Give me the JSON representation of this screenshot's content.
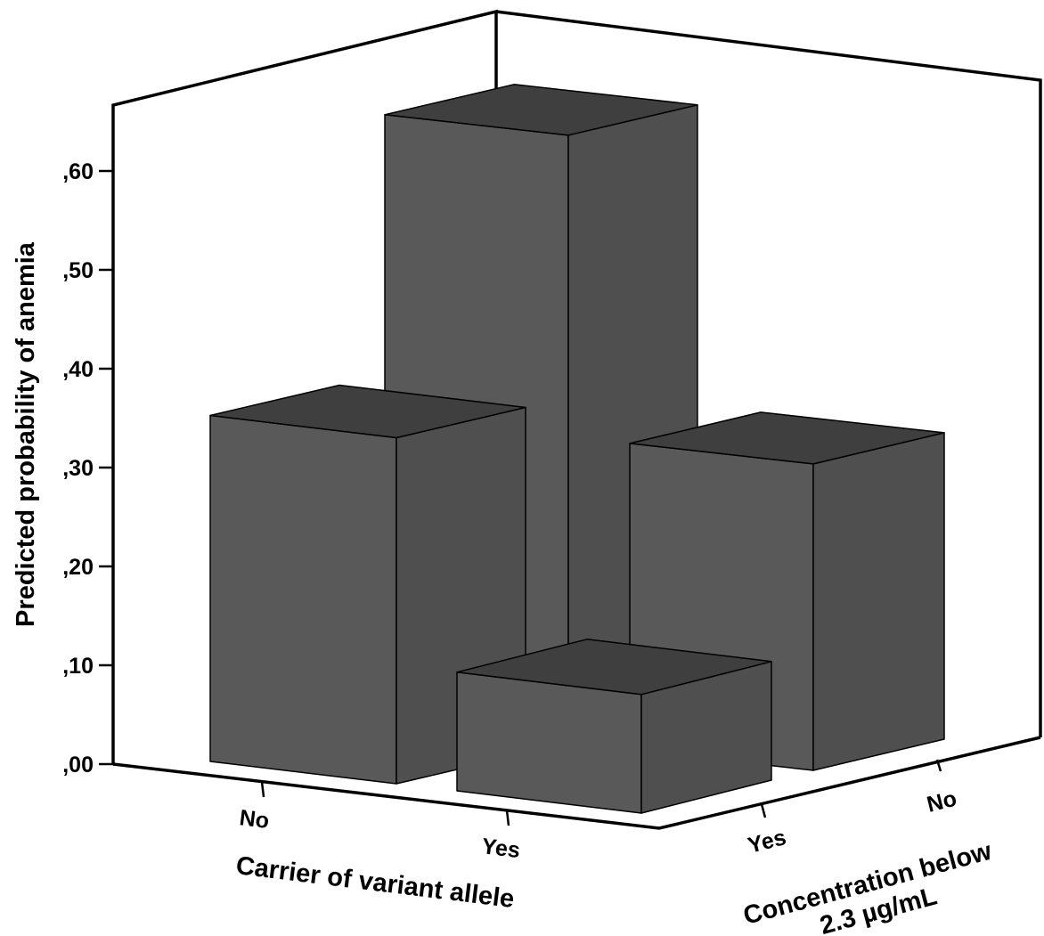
{
  "chart_data": {
    "type": "bar3d",
    "ylabel": "Predicted probability of anemia",
    "xlabel": "Carrier of variant allele",
    "zlabel": "Concentration below 2.3 µg/mL",
    "ylim": [
      0,
      0.6
    ],
    "yticks": [
      ",00",
      ",10",
      ",20",
      ",30",
      ",40",
      ",50",
      ",60"
    ],
    "x_categories": [
      "No",
      "Yes"
    ],
    "z_categories": [
      "Yes",
      "No"
    ],
    "bars": [
      {
        "carrier": "No",
        "concentration": "No",
        "value": 0.62
      },
      {
        "carrier": "No",
        "concentration": "Yes",
        "value": 0.35
      },
      {
        "carrier": "Yes",
        "concentration": "No",
        "value": 0.31
      },
      {
        "carrier": "Yes",
        "concentration": "Yes",
        "value": 0.12
      }
    ],
    "colors": {
      "front": "#595959",
      "side": "#4f4f4f",
      "top": "#3f3f3f",
      "edge": "#000000"
    }
  }
}
